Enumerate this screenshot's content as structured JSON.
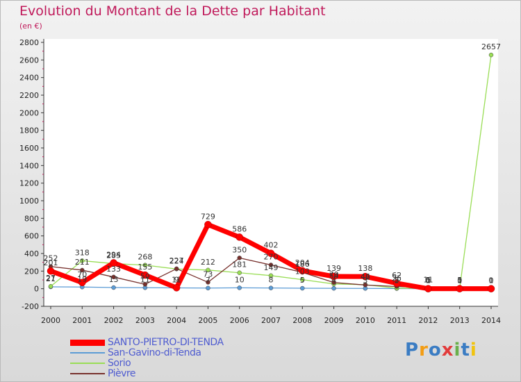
{
  "header": {
    "title": "Evolution du Montant de la Dette par Habitant",
    "subtitle": "(en €)"
  },
  "chart_data": {
    "type": "line",
    "title": "Evolution du Montant de la Dette par Habitant",
    "ylabel": "(en €)",
    "xlabel": "",
    "ylim": [
      -200,
      2800
    ],
    "yticks": [
      -200,
      0,
      200,
      400,
      600,
      800,
      1000,
      1200,
      1400,
      1600,
      1800,
      2000,
      2200,
      2400,
      2600,
      2800
    ],
    "x": [
      "2000",
      "2001",
      "2002",
      "2003",
      "2004",
      "2005",
      "2006",
      "2007",
      "2008",
      "2009",
      "2010",
      "2011",
      "2012",
      "2013",
      "2014"
    ],
    "grid": false,
    "legend_position": "bottom-left",
    "series": [
      {
        "name": "SANTO-PIETRO-DI-TENDA",
        "color": "#ff0000",
        "values": [
          201,
          70,
          294,
          155,
          11,
          729,
          586,
          402,
          204,
          139,
          138,
          62,
          0,
          0,
          0
        ],
        "labels": [
          "201",
          "70",
          "294",
          "155",
          "11",
          "729",
          "586",
          "402",
          "204",
          "139",
          "138",
          "62",
          "0",
          "0",
          "0"
        ]
      },
      {
        "name": "San-Gavino-di-Tenda",
        "color": "#5b9bd5",
        "values": [
          21,
          19,
          13,
          11,
          9,
          7,
          10,
          8,
          5,
          4,
          3,
          2,
          1,
          1,
          1
        ],
        "labels": [
          "21",
          "19",
          "13",
          "11",
          "9",
          "7",
          "10",
          "8",
          "5",
          "4",
          "3",
          "2",
          "1",
          "1",
          "1"
        ]
      },
      {
        "name": "Sorio",
        "color": "#99dd55",
        "values": [
          27,
          318,
          285,
          268,
          224,
          212,
          181,
          149,
          103,
          54,
          46,
          5,
          5,
          5,
          2657
        ],
        "labels": [
          "27",
          "318",
          "285",
          "268",
          "224",
          "212",
          "181",
          "149",
          "103",
          "54",
          "46",
          "5",
          "5",
          "5",
          "2657"
        ]
      },
      {
        "name": "Pièvre",
        "color": "#77302c",
        "values": [
          252,
          211,
          133,
          50,
          227,
          73,
          350,
          270,
          186,
          70,
          42,
          25,
          11,
          0,
          0
        ],
        "labels": [
          "252",
          "211",
          "133",
          "50",
          "227",
          "73",
          "350",
          "270",
          "186",
          "70",
          "42",
          "25",
          "11",
          "0",
          "0"
        ]
      }
    ]
  },
  "legend": {
    "items": [
      {
        "label": "SANTO-PIETRO-DI-TENDA",
        "color": "#ff0000"
      },
      {
        "label": "San-Gavino-di-Tenda",
        "color": "#5b9bd5"
      },
      {
        "label": "Sorio",
        "color": "#99dd55"
      },
      {
        "label": "Pièvre",
        "color": "#77302c"
      }
    ]
  },
  "logo": {
    "letters": [
      "P",
      "r",
      "o",
      "x",
      "i",
      "t",
      "i"
    ],
    "colors": [
      "#3a7cc3",
      "#f39c12",
      "#3a7cc3",
      "#e23b3b",
      "#6ab04c",
      "#3a7cc3",
      "#f1c40f"
    ]
  }
}
